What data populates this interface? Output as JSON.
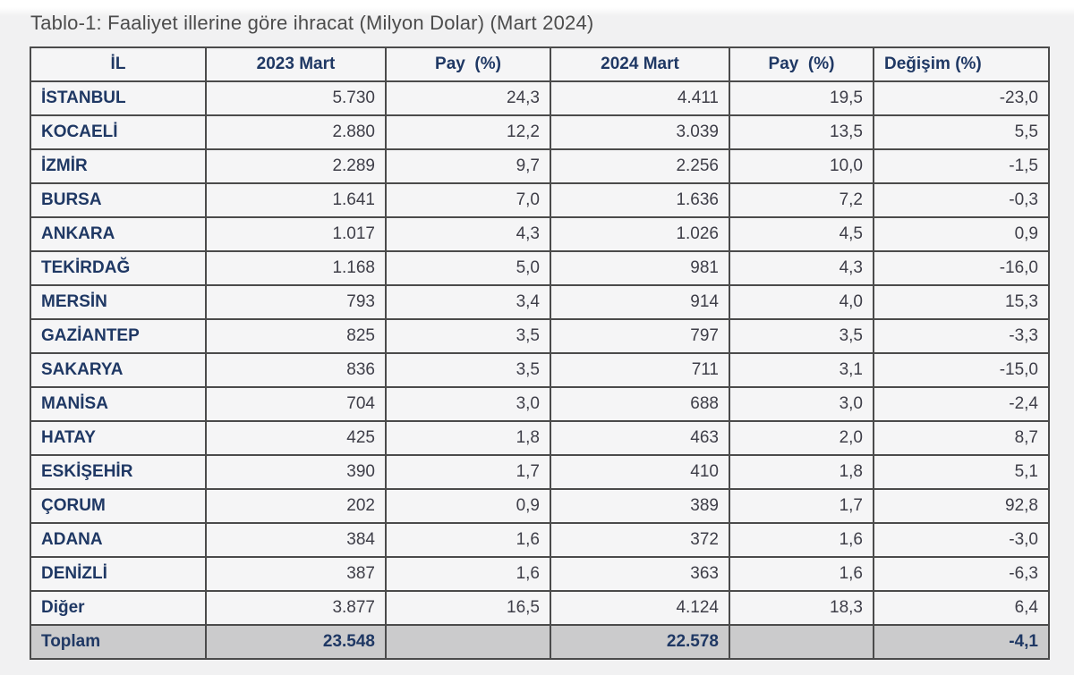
{
  "title": "Tablo-1: Faaliyet illerine göre ihracat (Milyon Dolar) (Mart 2024)",
  "colors": {
    "accent_navy": "#1f3864",
    "border": "#4b4b4b",
    "cell_background": "#f5f5f6",
    "total_row_background": "#cbcbcc",
    "number_text": "#3e3e48",
    "title_text": "#4c4c4c"
  },
  "table": {
    "columns": [
      "İL",
      "2023 Mart",
      "Pay  (%)",
      "2024 Mart",
      "Pay  (%)",
      "Değişim (%)"
    ],
    "rows": [
      {
        "il": "İSTANBUL",
        "v2023": "5.730",
        "pay2023": "24,3",
        "v2024": "4.411",
        "pay2024": "19,5",
        "degisim": "-23,0"
      },
      {
        "il": "KOCAELİ",
        "v2023": "2.880",
        "pay2023": "12,2",
        "v2024": "3.039",
        "pay2024": "13,5",
        "degisim": "5,5"
      },
      {
        "il": "İZMİR",
        "v2023": "2.289",
        "pay2023": "9,7",
        "v2024": "2.256",
        "pay2024": "10,0",
        "degisim": "-1,5"
      },
      {
        "il": "BURSA",
        "v2023": "1.641",
        "pay2023": "7,0",
        "v2024": "1.636",
        "pay2024": "7,2",
        "degisim": "-0,3"
      },
      {
        "il": "ANKARA",
        "v2023": "1.017",
        "pay2023": "4,3",
        "v2024": "1.026",
        "pay2024": "4,5",
        "degisim": "0,9"
      },
      {
        "il": "TEKİRDAĞ",
        "v2023": "1.168",
        "pay2023": "5,0",
        "v2024": "981",
        "pay2024": "4,3",
        "degisim": "-16,0"
      },
      {
        "il": "MERSİN",
        "v2023": "793",
        "pay2023": "3,4",
        "v2024": "914",
        "pay2024": "4,0",
        "degisim": "15,3"
      },
      {
        "il": "GAZİANTEP",
        "v2023": "825",
        "pay2023": "3,5",
        "v2024": "797",
        "pay2024": "3,5",
        "degisim": "-3,3"
      },
      {
        "il": "SAKARYA",
        "v2023": "836",
        "pay2023": "3,5",
        "v2024": "711",
        "pay2024": "3,1",
        "degisim": "-15,0"
      },
      {
        "il": "MANİSA",
        "v2023": "704",
        "pay2023": "3,0",
        "v2024": "688",
        "pay2024": "3,0",
        "degisim": "-2,4"
      },
      {
        "il": "HATAY",
        "v2023": "425",
        "pay2023": "1,8",
        "v2024": "463",
        "pay2024": "2,0",
        "degisim": "8,7"
      },
      {
        "il": "ESKİŞEHİR",
        "v2023": "390",
        "pay2023": "1,7",
        "v2024": "410",
        "pay2024": "1,8",
        "degisim": "5,1"
      },
      {
        "il": "ÇORUM",
        "v2023": "202",
        "pay2023": "0,9",
        "v2024": "389",
        "pay2024": "1,7",
        "degisim": "92,8"
      },
      {
        "il": "ADANA",
        "v2023": "384",
        "pay2023": "1,6",
        "v2024": "372",
        "pay2024": "1,6",
        "degisim": "-3,0"
      },
      {
        "il": "DENİZLİ",
        "v2023": "387",
        "pay2023": "1,6",
        "v2024": "363",
        "pay2024": "1,6",
        "degisim": "-6,3"
      },
      {
        "il": "Diğer",
        "v2023": "3.877",
        "pay2023": "16,5",
        "v2024": "4.124",
        "pay2024": "18,3",
        "degisim": "6,4"
      }
    ],
    "total_row": {
      "il": "Toplam",
      "v2023": "23.548",
      "pay2023": "",
      "v2024": "22.578",
      "pay2024": "",
      "degisim": "-4,1"
    }
  }
}
